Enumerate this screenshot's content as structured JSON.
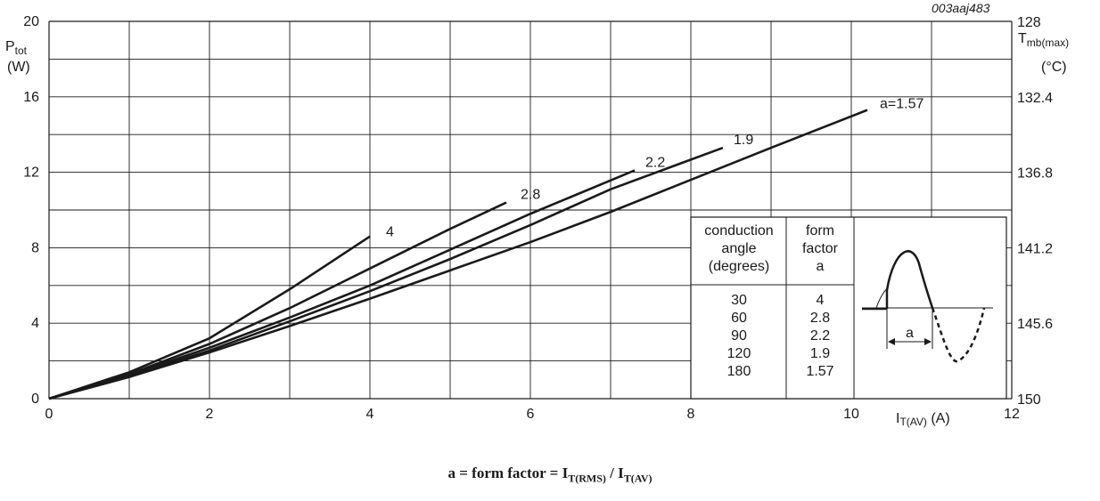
{
  "figure_code": "003aaj483",
  "formula": {
    "lhs": "a = form factor = ",
    "num_main": "I",
    "num_sub": "T(RMS)",
    "sep": " / ",
    "den_main": "I",
    "den_sub": "T(AV)"
  },
  "chart_data": {
    "type": "line",
    "y_left_label": {
      "main": "P",
      "sub": "tot",
      "unit": "(W)"
    },
    "y_right_label": {
      "main": "T",
      "sub": "mb(max)",
      "unit": "(°C)"
    },
    "x_label": {
      "main": "I",
      "sub": "T(AV)",
      "unit": " (A)"
    },
    "xlim": [
      0,
      12
    ],
    "ylim": [
      0,
      20
    ],
    "x_ticks": [
      "0",
      "2",
      "4",
      "6",
      "8",
      "10",
      "12"
    ],
    "y_ticks": [
      "0",
      "4",
      "8",
      "12",
      "16",
      "20"
    ],
    "y_right_ticks": [
      "150",
      "145.6",
      "141.2",
      "136.8",
      "132.4",
      "128"
    ],
    "grid": true,
    "series": [
      {
        "name": "4",
        "x": [
          0,
          1,
          2,
          3,
          4
        ],
        "y": [
          0,
          1.4,
          3.2,
          5.8,
          8.6
        ]
      },
      {
        "name": "2.8",
        "x": [
          0,
          1,
          2,
          3,
          4,
          5,
          5.7
        ],
        "y": [
          0,
          1.3,
          2.9,
          4.8,
          6.9,
          9.0,
          10.4
        ]
      },
      {
        "name": "2.2",
        "x": [
          0,
          1,
          2,
          3,
          4,
          5,
          6,
          7.3
        ],
        "y": [
          0,
          1.25,
          2.7,
          4.3,
          6.0,
          7.9,
          9.8,
          12.1
        ]
      },
      {
        "name": "1.9",
        "x": [
          0,
          1,
          2,
          3,
          4,
          5,
          6,
          7,
          8.4
        ],
        "y": [
          0,
          1.2,
          2.55,
          4.1,
          5.7,
          7.4,
          9.2,
          11.1,
          13.3
        ]
      },
      {
        "name": "a=1.57",
        "x": [
          0,
          1,
          2,
          3,
          4,
          5,
          6,
          7,
          8,
          9,
          10.2
        ],
        "y": [
          0,
          1.15,
          2.45,
          3.85,
          5.3,
          6.8,
          8.3,
          9.9,
          11.6,
          13.3,
          15.3
        ]
      }
    ],
    "table": {
      "headers": [
        [
          "conduction",
          "angle",
          "(degrees)"
        ],
        [
          "form",
          "factor",
          "a"
        ]
      ],
      "rows": [
        [
          "30",
          "4"
        ],
        [
          "60",
          "2.8"
        ],
        [
          "90",
          "2.2"
        ],
        [
          "120",
          "1.9"
        ],
        [
          "180",
          "1.57"
        ]
      ]
    },
    "waveform_label": "a"
  }
}
